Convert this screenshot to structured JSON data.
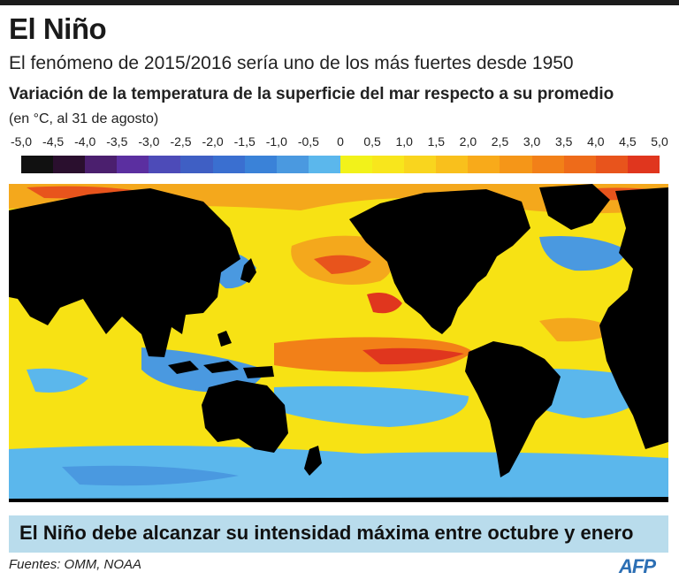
{
  "title": "El Niño",
  "subtitle": "El fenómeno de 2015/2016 sería uno de los más fuertes desde 1950",
  "map_title": "Variación de la temperatura de la superficie del mar respecto a su promedio",
  "units_note": "(en °C, al 31 de agosto)",
  "legend": {
    "ticks": [
      "-5,0",
      "-4,5",
      "-4,0",
      "-3,5",
      "-3,0",
      "-2,5",
      "-2,0",
      "-1,5",
      "-1,0",
      "-0,5",
      "0",
      "0,5",
      "1,0",
      "1,5",
      "2,0",
      "2,5",
      "3,0",
      "3,5",
      "4,0",
      "4,5",
      "5,0"
    ],
    "colors": [
      "#111111",
      "#2a0f2e",
      "#4b1f6e",
      "#5b2fa0",
      "#4d4bb8",
      "#3f5fc4",
      "#3a6fd0",
      "#3a82d8",
      "#4a99e0",
      "#5bb7ec",
      "#f2f21a",
      "#f8e61c",
      "#f9d51e",
      "#f9c01c",
      "#f8aa1a",
      "#f59618",
      "#f28018",
      "#ee6b1a",
      "#e8541c",
      "#e0361e"
    ]
  },
  "map": {
    "land_color": "#000000",
    "ocean_base_color": "#f7e214"
  },
  "banner": "El Niño debe alcanzar su intensidad máxima entre octubre y enero",
  "sources": "Fuentes: OMM, NOAA",
  "logo": "AFP"
}
